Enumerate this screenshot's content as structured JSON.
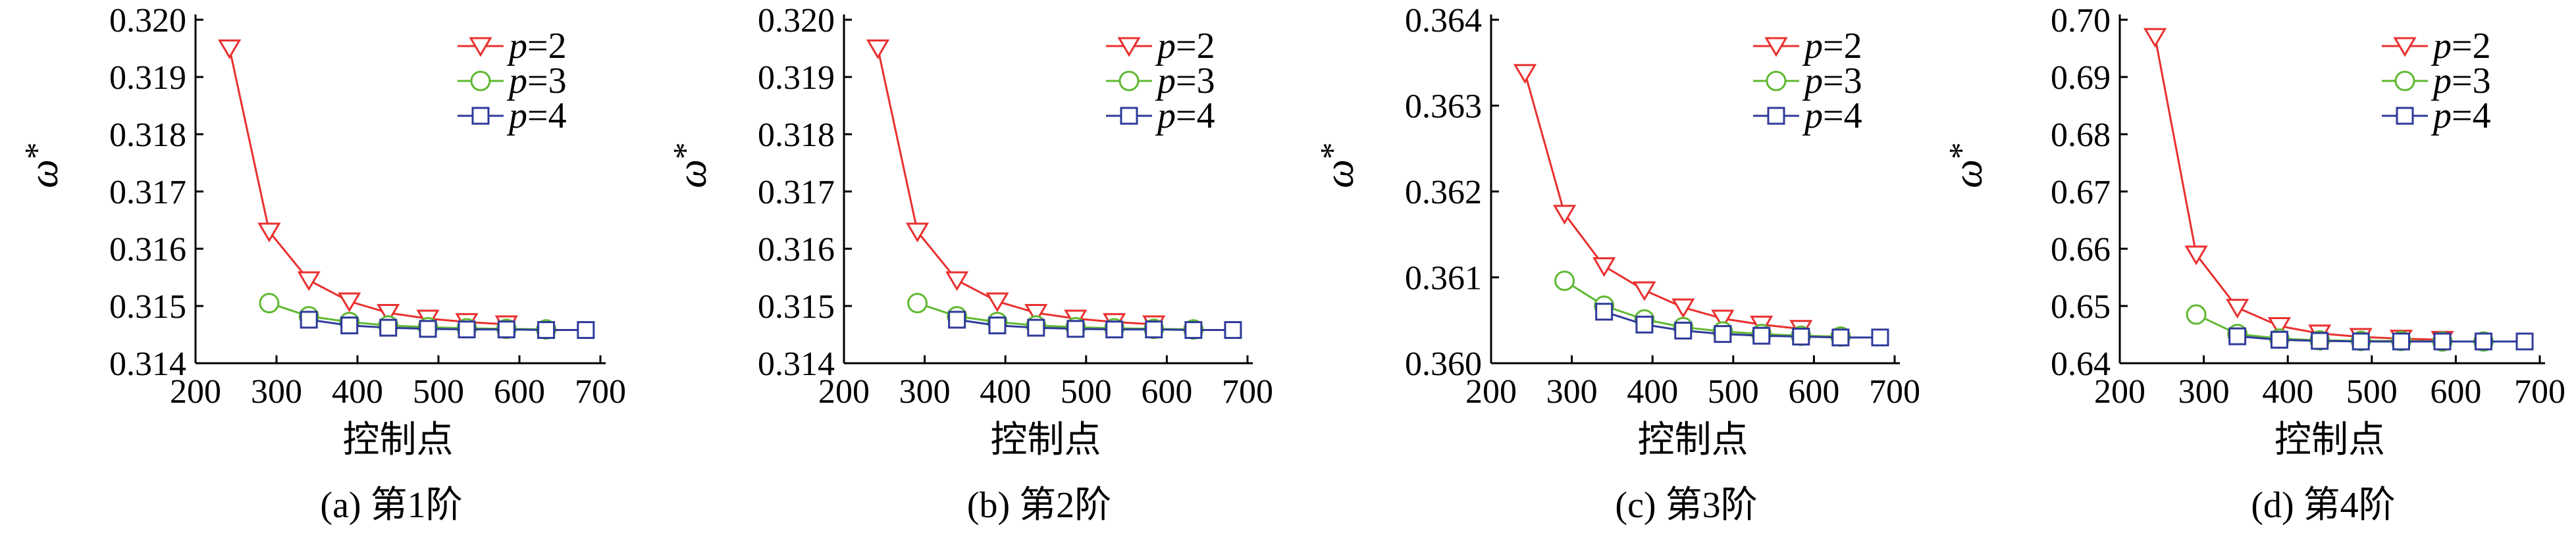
{
  "colors": {
    "p2": "#e8302f",
    "p3": "#5fb832",
    "p4": "#2f3a9a",
    "axis": "#000000"
  },
  "legend_position": "top-right",
  "xlabel": "控制点",
  "ylabel_main": "ω",
  "ylabel_sup": "*",
  "series_labels": [
    "p=2",
    "p=3",
    "p=4"
  ],
  "chart_data": [
    {
      "type": "line",
      "caption": "(a) 第1阶",
      "xlim": [
        200,
        700
      ],
      "xticks": [
        200,
        300,
        400,
        500,
        600,
        700
      ],
      "ylim": [
        0.314,
        0.32
      ],
      "yticks": [
        0.314,
        0.315,
        0.316,
        0.317,
        0.318,
        0.319,
        0.32
      ],
      "ytick_labels": [
        "0.314",
        "0.315",
        "0.316",
        "0.317",
        "0.318",
        "0.319",
        "0.320"
      ],
      "series": [
        {
          "name": "p=2",
          "marker": "triangle-down",
          "x": [
            242,
            291,
            340,
            390,
            438,
            487,
            535,
            584
          ],
          "y": [
            0.3195,
            0.3163,
            0.31545,
            0.31508,
            0.31488,
            0.31478,
            0.31472,
            0.31468
          ]
        },
        {
          "name": "p=3",
          "marker": "circle",
          "x": [
            291,
            340,
            390,
            438,
            487,
            535,
            584,
            633
          ],
          "y": [
            0.31505,
            0.31482,
            0.31472,
            0.31466,
            0.31463,
            0.31461,
            0.3146,
            0.31459
          ]
        },
        {
          "name": "p=4",
          "marker": "square",
          "x": [
            340,
            390,
            438,
            487,
            535,
            584,
            633,
            682
          ],
          "y": [
            0.31476,
            0.31466,
            0.31462,
            0.3146,
            0.31459,
            0.31459,
            0.31458,
            0.31458
          ]
        }
      ]
    },
    {
      "type": "line",
      "caption": "(b) 第2阶",
      "xlim": [
        200,
        700
      ],
      "xticks": [
        200,
        300,
        400,
        500,
        600,
        700
      ],
      "ylim": [
        0.314,
        0.32
      ],
      "yticks": [
        0.314,
        0.315,
        0.316,
        0.317,
        0.318,
        0.319,
        0.32
      ],
      "ytick_labels": [
        "0.314",
        "0.315",
        "0.316",
        "0.317",
        "0.318",
        "0.319",
        "0.320"
      ],
      "series": [
        {
          "name": "p=2",
          "marker": "triangle-down",
          "x": [
            242,
            291,
            340,
            390,
            438,
            487,
            535,
            584
          ],
          "y": [
            0.3195,
            0.3163,
            0.31545,
            0.31508,
            0.31488,
            0.31478,
            0.31472,
            0.31468
          ]
        },
        {
          "name": "p=3",
          "marker": "circle",
          "x": [
            291,
            340,
            390,
            438,
            487,
            535,
            584,
            633
          ],
          "y": [
            0.31505,
            0.31482,
            0.31472,
            0.31466,
            0.31463,
            0.31461,
            0.3146,
            0.31459
          ]
        },
        {
          "name": "p=4",
          "marker": "square",
          "x": [
            340,
            390,
            438,
            487,
            535,
            584,
            633,
            682
          ],
          "y": [
            0.31476,
            0.31466,
            0.31462,
            0.3146,
            0.31459,
            0.31459,
            0.31458,
            0.31458
          ]
        }
      ]
    },
    {
      "type": "line",
      "caption": "(c) 第3阶",
      "xlim": [
        200,
        700
      ],
      "xticks": [
        200,
        300,
        400,
        500,
        600,
        700
      ],
      "ylim": [
        0.36,
        0.364
      ],
      "yticks": [
        0.36,
        0.361,
        0.362,
        0.363,
        0.364
      ],
      "ytick_labels": [
        "0.360",
        "0.361",
        "0.362",
        "0.363",
        "0.364"
      ],
      "series": [
        {
          "name": "p=2",
          "marker": "triangle-down",
          "x": [
            242,
            291,
            340,
            390,
            438,
            487,
            535,
            584
          ],
          "y": [
            0.36338,
            0.36174,
            0.36113,
            0.36085,
            0.36065,
            0.36052,
            0.36045,
            0.3604
          ]
        },
        {
          "name": "p=3",
          "marker": "circle",
          "x": [
            291,
            340,
            390,
            438,
            487,
            535,
            584,
            633
          ],
          "y": [
            0.36096,
            0.36067,
            0.36051,
            0.36042,
            0.36037,
            0.36034,
            0.36032,
            0.36031
          ]
        },
        {
          "name": "p=4",
          "marker": "square",
          "x": [
            340,
            390,
            438,
            487,
            535,
            584,
            633,
            682
          ],
          "y": [
            0.3606,
            0.36045,
            0.36038,
            0.36034,
            0.36032,
            0.36031,
            0.3603,
            0.3603
          ]
        }
      ]
    },
    {
      "type": "line",
      "caption": "(d) 第4阶",
      "xlim": [
        200,
        700
      ],
      "xticks": [
        200,
        300,
        400,
        500,
        600,
        700
      ],
      "ylim": [
        0.64,
        0.7
      ],
      "yticks": [
        0.64,
        0.65,
        0.66,
        0.67,
        0.68,
        0.69,
        0.7
      ],
      "ytick_labels": [
        "0.64",
        "0.65",
        "0.66",
        "0.67",
        "0.68",
        "0.69",
        "0.70"
      ],
      "series": [
        {
          "name": "p=2",
          "marker": "triangle-down",
          "x": [
            242,
            291,
            340,
            390,
            438,
            487,
            535,
            584
          ],
          "y": [
            0.697,
            0.659,
            0.6497,
            0.6465,
            0.6452,
            0.6446,
            0.6443,
            0.6441
          ]
        },
        {
          "name": "p=3",
          "marker": "circle",
          "x": [
            291,
            340,
            390,
            438,
            487,
            535,
            584,
            633
          ],
          "y": [
            0.6485,
            0.6451,
            0.6443,
            0.644,
            0.6439,
            0.6439,
            0.6438,
            0.6438
          ]
        },
        {
          "name": "p=4",
          "marker": "square",
          "x": [
            340,
            390,
            438,
            487,
            535,
            584,
            633,
            682
          ],
          "y": [
            0.6447,
            0.6441,
            0.6439,
            0.6438,
            0.6438,
            0.6438,
            0.6438,
            0.6438
          ]
        }
      ]
    }
  ]
}
